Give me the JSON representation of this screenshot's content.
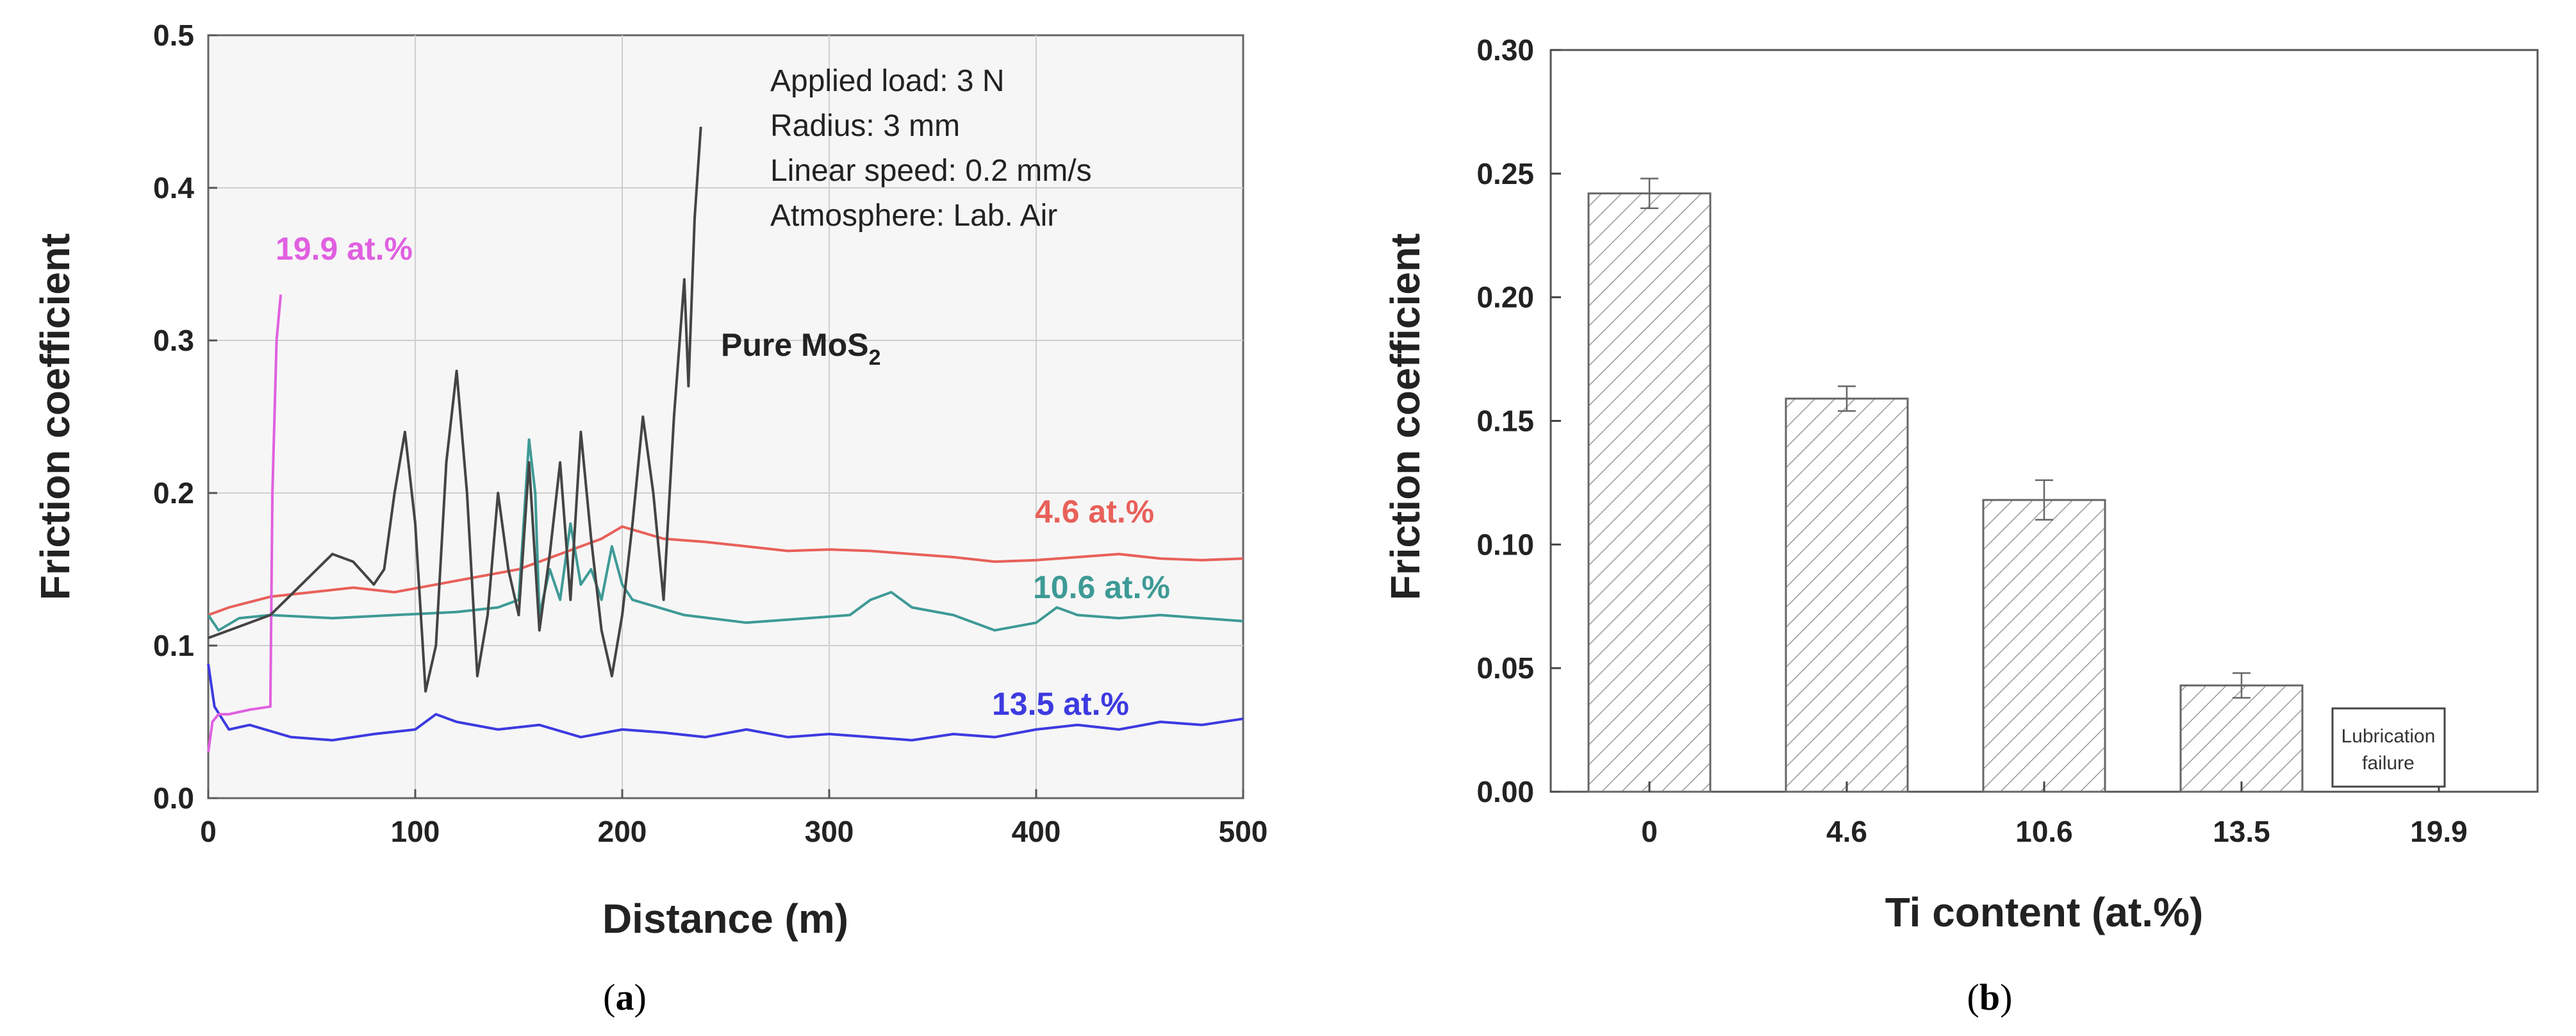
{
  "chart_data": [
    {
      "panel": "a",
      "type": "line",
      "caption_letter": "a",
      "xlabel": "Distance (m)",
      "ylabel": "Friction coefficient",
      "xlim": [
        0,
        500
      ],
      "ylim": [
        0,
        0.5
      ],
      "xticks": [
        "0",
        "100",
        "200",
        "300",
        "400",
        "500"
      ],
      "yticks": [
        "0.0",
        "0.1",
        "0.2",
        "0.3",
        "0.4",
        "0.5"
      ],
      "conditions": [
        "Applied load: 3 N",
        "Radius: 3 mm",
        "Linear speed: 0.2 mm/s",
        "Atmosphere: Lab. Air"
      ],
      "pure_label_main": "Pure MoS",
      "pure_label_sub": "2",
      "series": [
        {
          "name": "4.6 at.%",
          "color": "#e8605a",
          "x": [
            0,
            10,
            30,
            50,
            70,
            90,
            110,
            130,
            150,
            170,
            190,
            200,
            220,
            240,
            260,
            280,
            300,
            320,
            340,
            360,
            380,
            400,
            420,
            440,
            460,
            480,
            500
          ],
          "y": [
            0.12,
            0.125,
            0.132,
            0.135,
            0.138,
            0.135,
            0.14,
            0.145,
            0.15,
            0.16,
            0.17,
            0.178,
            0.17,
            0.168,
            0.165,
            0.162,
            0.163,
            0.162,
            0.16,
            0.158,
            0.155,
            0.156,
            0.158,
            0.16,
            0.157,
            0.156,
            0.157
          ]
        },
        {
          "name": "10.6 at.%",
          "color": "#3e9a96",
          "x": [
            0,
            5,
            15,
            30,
            60,
            90,
            120,
            140,
            150,
            155,
            158,
            160,
            165,
            170,
            175,
            180,
            185,
            190,
            195,
            200,
            205,
            210,
            230,
            260,
            290,
            310,
            320,
            330,
            340,
            360,
            380,
            400,
            410,
            420,
            440,
            460,
            480,
            500
          ],
          "y": [
            0.12,
            0.11,
            0.118,
            0.12,
            0.118,
            0.12,
            0.122,
            0.125,
            0.13,
            0.235,
            0.2,
            0.12,
            0.15,
            0.13,
            0.18,
            0.14,
            0.15,
            0.13,
            0.165,
            0.14,
            0.13,
            0.128,
            0.12,
            0.115,
            0.118,
            0.12,
            0.13,
            0.135,
            0.125,
            0.12,
            0.11,
            0.115,
            0.125,
            0.12,
            0.118,
            0.12,
            0.118,
            0.116
          ]
        },
        {
          "name": "13.5 at.%",
          "color": "#3d3ae0",
          "x": [
            0,
            3,
            10,
            20,
            40,
            60,
            80,
            100,
            110,
            120,
            140,
            160,
            180,
            200,
            220,
            240,
            260,
            280,
            300,
            320,
            340,
            360,
            380,
            400,
            420,
            440,
            460,
            480,
            500
          ],
          "y": [
            0.088,
            0.06,
            0.045,
            0.048,
            0.04,
            0.038,
            0.042,
            0.045,
            0.055,
            0.05,
            0.045,
            0.048,
            0.04,
            0.045,
            0.043,
            0.04,
            0.045,
            0.04,
            0.042,
            0.04,
            0.038,
            0.042,
            0.04,
            0.045,
            0.048,
            0.045,
            0.05,
            0.048,
            0.052
          ]
        },
        {
          "name": "19.9 at.%",
          "color": "#e060e0",
          "x": [
            0,
            2,
            5,
            10,
            20,
            30,
            31,
            33,
            35
          ],
          "y": [
            0.03,
            0.05,
            0.055,
            0.055,
            0.058,
            0.06,
            0.2,
            0.3,
            0.33
          ]
        },
        {
          "name": "Pure MoS2",
          "color": "#444444",
          "x": [
            0,
            10,
            30,
            45,
            60,
            70,
            80,
            85,
            90,
            95,
            100,
            105,
            110,
            115,
            120,
            125,
            130,
            135,
            140,
            145,
            150,
            155,
            160,
            165,
            170,
            175,
            180,
            185,
            190,
            195,
            200,
            205,
            210,
            215,
            220,
            225,
            230,
            232,
            235,
            238
          ],
          "y": [
            0.105,
            0.11,
            0.12,
            0.14,
            0.16,
            0.155,
            0.14,
            0.15,
            0.2,
            0.24,
            0.18,
            0.07,
            0.1,
            0.22,
            0.28,
            0.2,
            0.08,
            0.12,
            0.2,
            0.15,
            0.12,
            0.22,
            0.11,
            0.16,
            0.22,
            0.13,
            0.24,
            0.17,
            0.11,
            0.08,
            0.12,
            0.18,
            0.25,
            0.2,
            0.13,
            0.25,
            0.34,
            0.27,
            0.38,
            0.44
          ]
        }
      ]
    },
    {
      "panel": "b",
      "type": "bar",
      "caption_letter": "b",
      "xlabel": "Ti content (at.%)",
      "ylabel": "Friction coefficient",
      "ylim": [
        0,
        0.3
      ],
      "yticks": [
        "0.00",
        "0.05",
        "0.10",
        "0.15",
        "0.20",
        "0.25",
        "0.30"
      ],
      "categories": [
        "0",
        "4.6",
        "10.6",
        "13.5",
        "19.9"
      ],
      "values": [
        0.242,
        0.159,
        0.118,
        0.043,
        null
      ],
      "errors": [
        0.006,
        0.005,
        0.008,
        0.005,
        null
      ],
      "failure_label_line1": "Lubrication",
      "failure_label_line2": "failure"
    }
  ]
}
